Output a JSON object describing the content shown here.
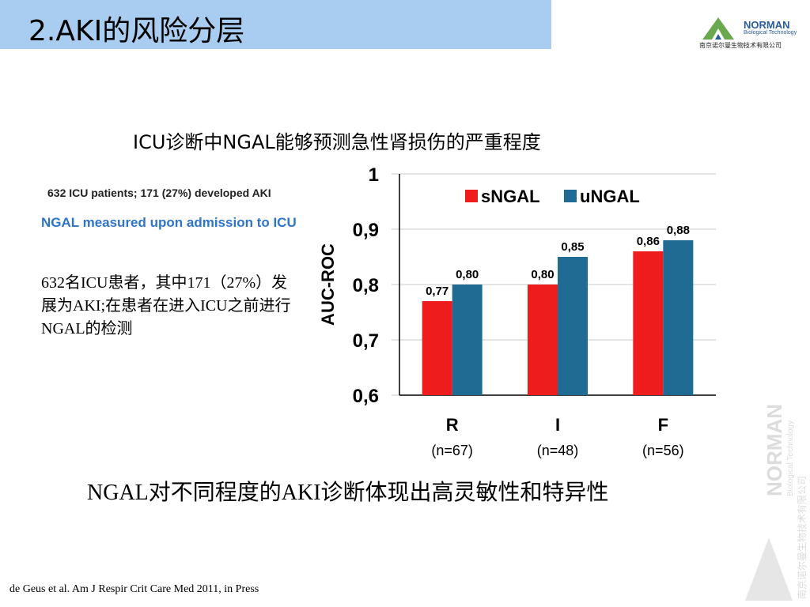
{
  "slide": {
    "title": "2.AKI的风险分层",
    "subtitle": "ICU诊断中NGAL能够预测急性肾损伤的严重程度",
    "study_line1": "632 ICU patients; 171 (27%) developed AKI",
    "study_line2": "NGAL measured upon admission to ICU",
    "description": "632名ICU患者，其中171（27%）发展为AKI;在患者在进入ICU之前进行NGAL的检测",
    "conclusion": "NGAL对不同程度的AKI诊断体现出高灵敏性和特异性",
    "citation": "de Geus et al. Am J Respir Crit Care Med 2011, in Press"
  },
  "logo": {
    "brand": "NORMAN",
    "sub": "Biological Technology",
    "cn": "南京诺尔曼生物技术有限公司"
  },
  "watermark": {
    "brand": "NORMAN",
    "sub": "Biological Technology",
    "cn": "南京诺尔曼生物技术有限公司"
  },
  "colors": {
    "title_bar": "#a8cdf0",
    "sngal": "#ee1c1c",
    "ungal": "#1f6b93",
    "accent_blue": "#2e74c9"
  },
  "chart_data": {
    "type": "bar",
    "categories": [
      "R",
      "I",
      "F"
    ],
    "category_sublabels": [
      "(n=67)",
      "(n=48)",
      "(n=56)"
    ],
    "series": [
      {
        "name": "sNGAL",
        "values": [
          0.77,
          0.8,
          0.86
        ],
        "labels": [
          "0,77",
          "0,80",
          "0,86"
        ]
      },
      {
        "name": "uNGAL",
        "values": [
          0.8,
          0.85,
          0.88
        ],
        "labels": [
          "0,80",
          "0,85",
          "0,88"
        ]
      }
    ],
    "ylabel": "AUC-ROC",
    "ylim": [
      0.6,
      1
    ],
    "yticks": [
      {
        "value": 0.6,
        "label": "0,6"
      },
      {
        "value": 0.7,
        "label": "0,7"
      },
      {
        "value": 0.8,
        "label": "0,8"
      },
      {
        "value": 0.9,
        "label": "0,9"
      },
      {
        "value": 1.0,
        "label": "1"
      }
    ],
    "grid": true,
    "legend_position": "top-right"
  }
}
